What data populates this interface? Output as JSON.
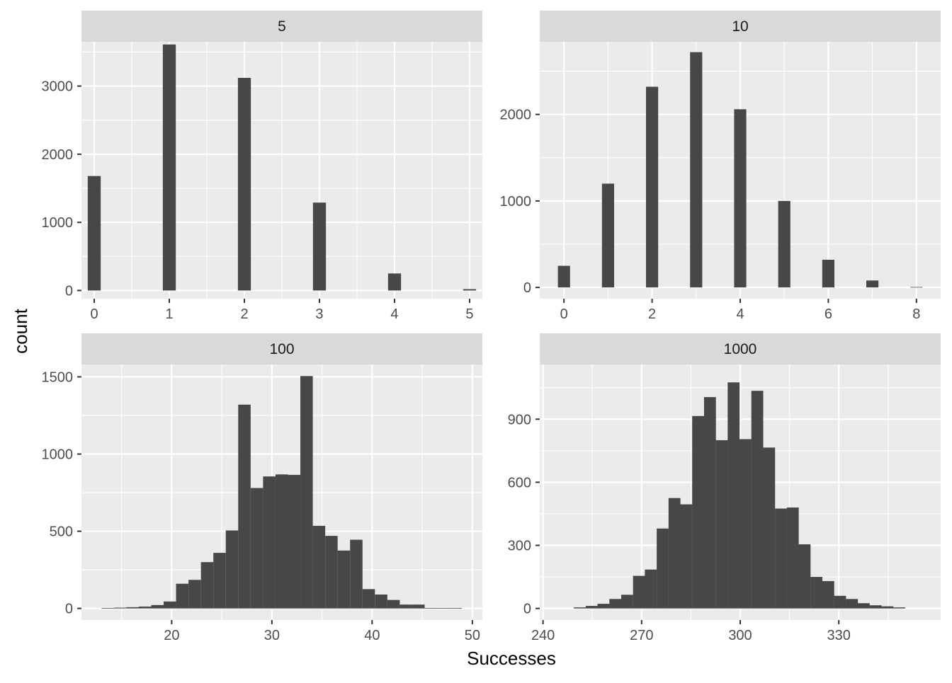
{
  "chart_data": {
    "type": "bar",
    "xlabel": "Successes",
    "ylabel": "count",
    "facet_layout": "2x2",
    "grid": true,
    "bar_color": "#474747",
    "panel_background": "#ebebeb",
    "strip_background": "#d9d9d9",
    "panels": [
      {
        "strip": "5",
        "xlim": [
          -0.17,
          5.17
        ],
        "ylim": [
          -120,
          3650
        ],
        "xticks": [
          0,
          1,
          2,
          3,
          4,
          5
        ],
        "xtick_labels": [
          "0",
          "1",
          "2",
          "3",
          "4",
          "5"
        ],
        "yticks": [
          0,
          1000,
          2000,
          3000
        ],
        "ytick_labels": [
          "0",
          "1000",
          "2000",
          "3000"
        ],
        "binwidth": 0.1724,
        "x": [
          0,
          1,
          2,
          3,
          4,
          5
        ],
        "values": [
          1680,
          3610,
          3120,
          1290,
          250,
          20
        ]
      },
      {
        "strip": "10",
        "xlim": [
          -0.55,
          8.55
        ],
        "ylim": [
          -130,
          2840
        ],
        "xticks": [
          0,
          2,
          4,
          6,
          8
        ],
        "xtick_labels": [
          "0",
          "2",
          "4",
          "6",
          "8"
        ],
        "yticks": [
          0,
          1000,
          2000
        ],
        "ytick_labels": [
          "0",
          "1000",
          "2000"
        ],
        "binwidth": 0.276,
        "x": [
          0,
          1,
          2,
          3,
          4,
          5,
          6,
          7,
          8
        ],
        "values": [
          250,
          1200,
          2320,
          2720,
          2060,
          1000,
          320,
          80,
          5
        ]
      },
      {
        "strip": "100",
        "xlim": [
          11,
          51
        ],
        "ylim": [
          -75,
          1580
        ],
        "xticks": [
          20,
          30,
          40,
          50
        ],
        "xtick_labels": [
          "20",
          "30",
          "40",
          "50"
        ],
        "yticks": [
          0,
          500,
          1000,
          1500
        ],
        "ytick_labels": [
          "0",
          "500",
          "1000",
          "1500"
        ],
        "binwidth": 1.24,
        "x": [
          13.62,
          14.86,
          16.1,
          17.34,
          18.58,
          19.82,
          21.06,
          22.3,
          23.54,
          24.78,
          26.02,
          27.26,
          28.5,
          29.74,
          30.98,
          32.22,
          33.46,
          34.7,
          35.94,
          37.18,
          38.42,
          39.66,
          40.9,
          42.14,
          43.38,
          44.62,
          45.86,
          47.1,
          48.34
        ],
        "values": [
          2,
          5,
          8,
          12,
          22,
          45,
          160,
          185,
          300,
          360,
          505,
          1320,
          780,
          855,
          868,
          865,
          1505,
          535,
          470,
          375,
          445,
          125,
          90,
          55,
          25,
          25,
          3,
          2,
          3
        ]
      },
      {
        "strip": "1000",
        "xlim": [
          239,
          361
        ],
        "ylim": [
          -55,
          1160
        ],
        "xticks": [
          240,
          270,
          300,
          330
        ],
        "xtick_labels": [
          "240",
          "270",
          "300",
          "330"
        ],
        "yticks": [
          0,
          300,
          600,
          900
        ],
        "ytick_labels": [
          "0",
          "300",
          "600",
          "900"
        ],
        "binwidth": 3.62,
        "x": [
          251.2,
          254.8,
          258.4,
          262,
          265.6,
          269.2,
          272.8,
          276.4,
          280,
          283.6,
          287.2,
          290.8,
          294.4,
          298,
          301.6,
          305.2,
          308.8,
          312.4,
          316,
          319.6,
          323.2,
          326.8,
          330.4,
          334,
          337.6,
          341.2,
          344.8,
          348.4
        ],
        "values": [
          5,
          12,
          22,
          45,
          65,
          155,
          185,
          380,
          525,
          495,
          915,
          1005,
          800,
          1075,
          805,
          1035,
          765,
          475,
          480,
          305,
          150,
          130,
          60,
          45,
          25,
          15,
          10,
          5
        ]
      }
    ]
  }
}
